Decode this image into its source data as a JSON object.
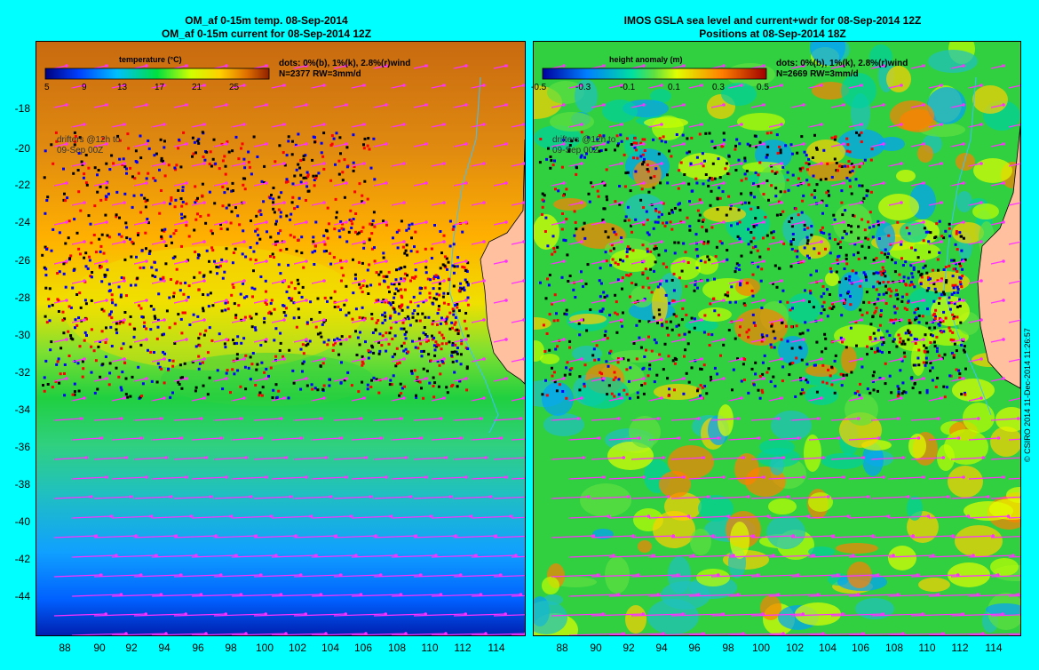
{
  "left_map": {
    "title_line1": "OM_af 0-15m temp. 08-Sep-2014",
    "title_line2": "OM_af 0-15m current for 08-Sep-2014 12Z",
    "colorbar_title": "temperature (°C)",
    "colorbar_ticks": [
      "5",
      "9",
      "13",
      "17",
      "21",
      "25"
    ],
    "dots_note": "dots: 0%(b), 1%(k), 2.8%(r)wind",
    "n_note": "N=2377 RW=3mm/d",
    "drifters_line1": "drifters @12h to",
    "drifters_line2": "09-Sep 00Z",
    "colors": [
      "#000090",
      "#0050ff",
      "#00b0ff",
      "#00e060",
      "#b0ff00",
      "#ffd000",
      "#d07000",
      "#a03000"
    ]
  },
  "right_map": {
    "title_line1": "IMOS GSLA sea level and current+wdr for 08-Sep-2014 12Z",
    "title_line2": "Positions at 08-Sep-2014 18Z",
    "colorbar_title": "height anomaly (m)",
    "colorbar_ticks": [
      "-0.5",
      "-0.3",
      "-0.1",
      "0.1",
      "0.3",
      "0.5"
    ],
    "dots_note": "dots: 0%(b), 1%(k), 2.8%(r)wind",
    "n_note": "N=2669 RW=3mm/d",
    "drifters_line1": "drifters @12h to",
    "drifters_line2": "09-Sep 00Z",
    "colors": [
      "#0000a0",
      "#0060ff",
      "#00d0ff",
      "#00d060",
      "#c0ff00",
      "#ffd000",
      "#ff6000",
      "#a00000"
    ]
  },
  "axes": {
    "lat_ticks": [
      "-18",
      "-20",
      "-22",
      "-24",
      "-26",
      "-28",
      "-30",
      "-32",
      "-34",
      "-36",
      "-38",
      "-40",
      "-42",
      "-44"
    ],
    "lon_ticks": [
      "88",
      "90",
      "92",
      "94",
      "96",
      "98",
      "100",
      "102",
      "104",
      "106",
      "108",
      "110",
      "112",
      "114"
    ]
  },
  "credit": "© CSIRO 2014   11-Dec-2014 11:26:57"
}
